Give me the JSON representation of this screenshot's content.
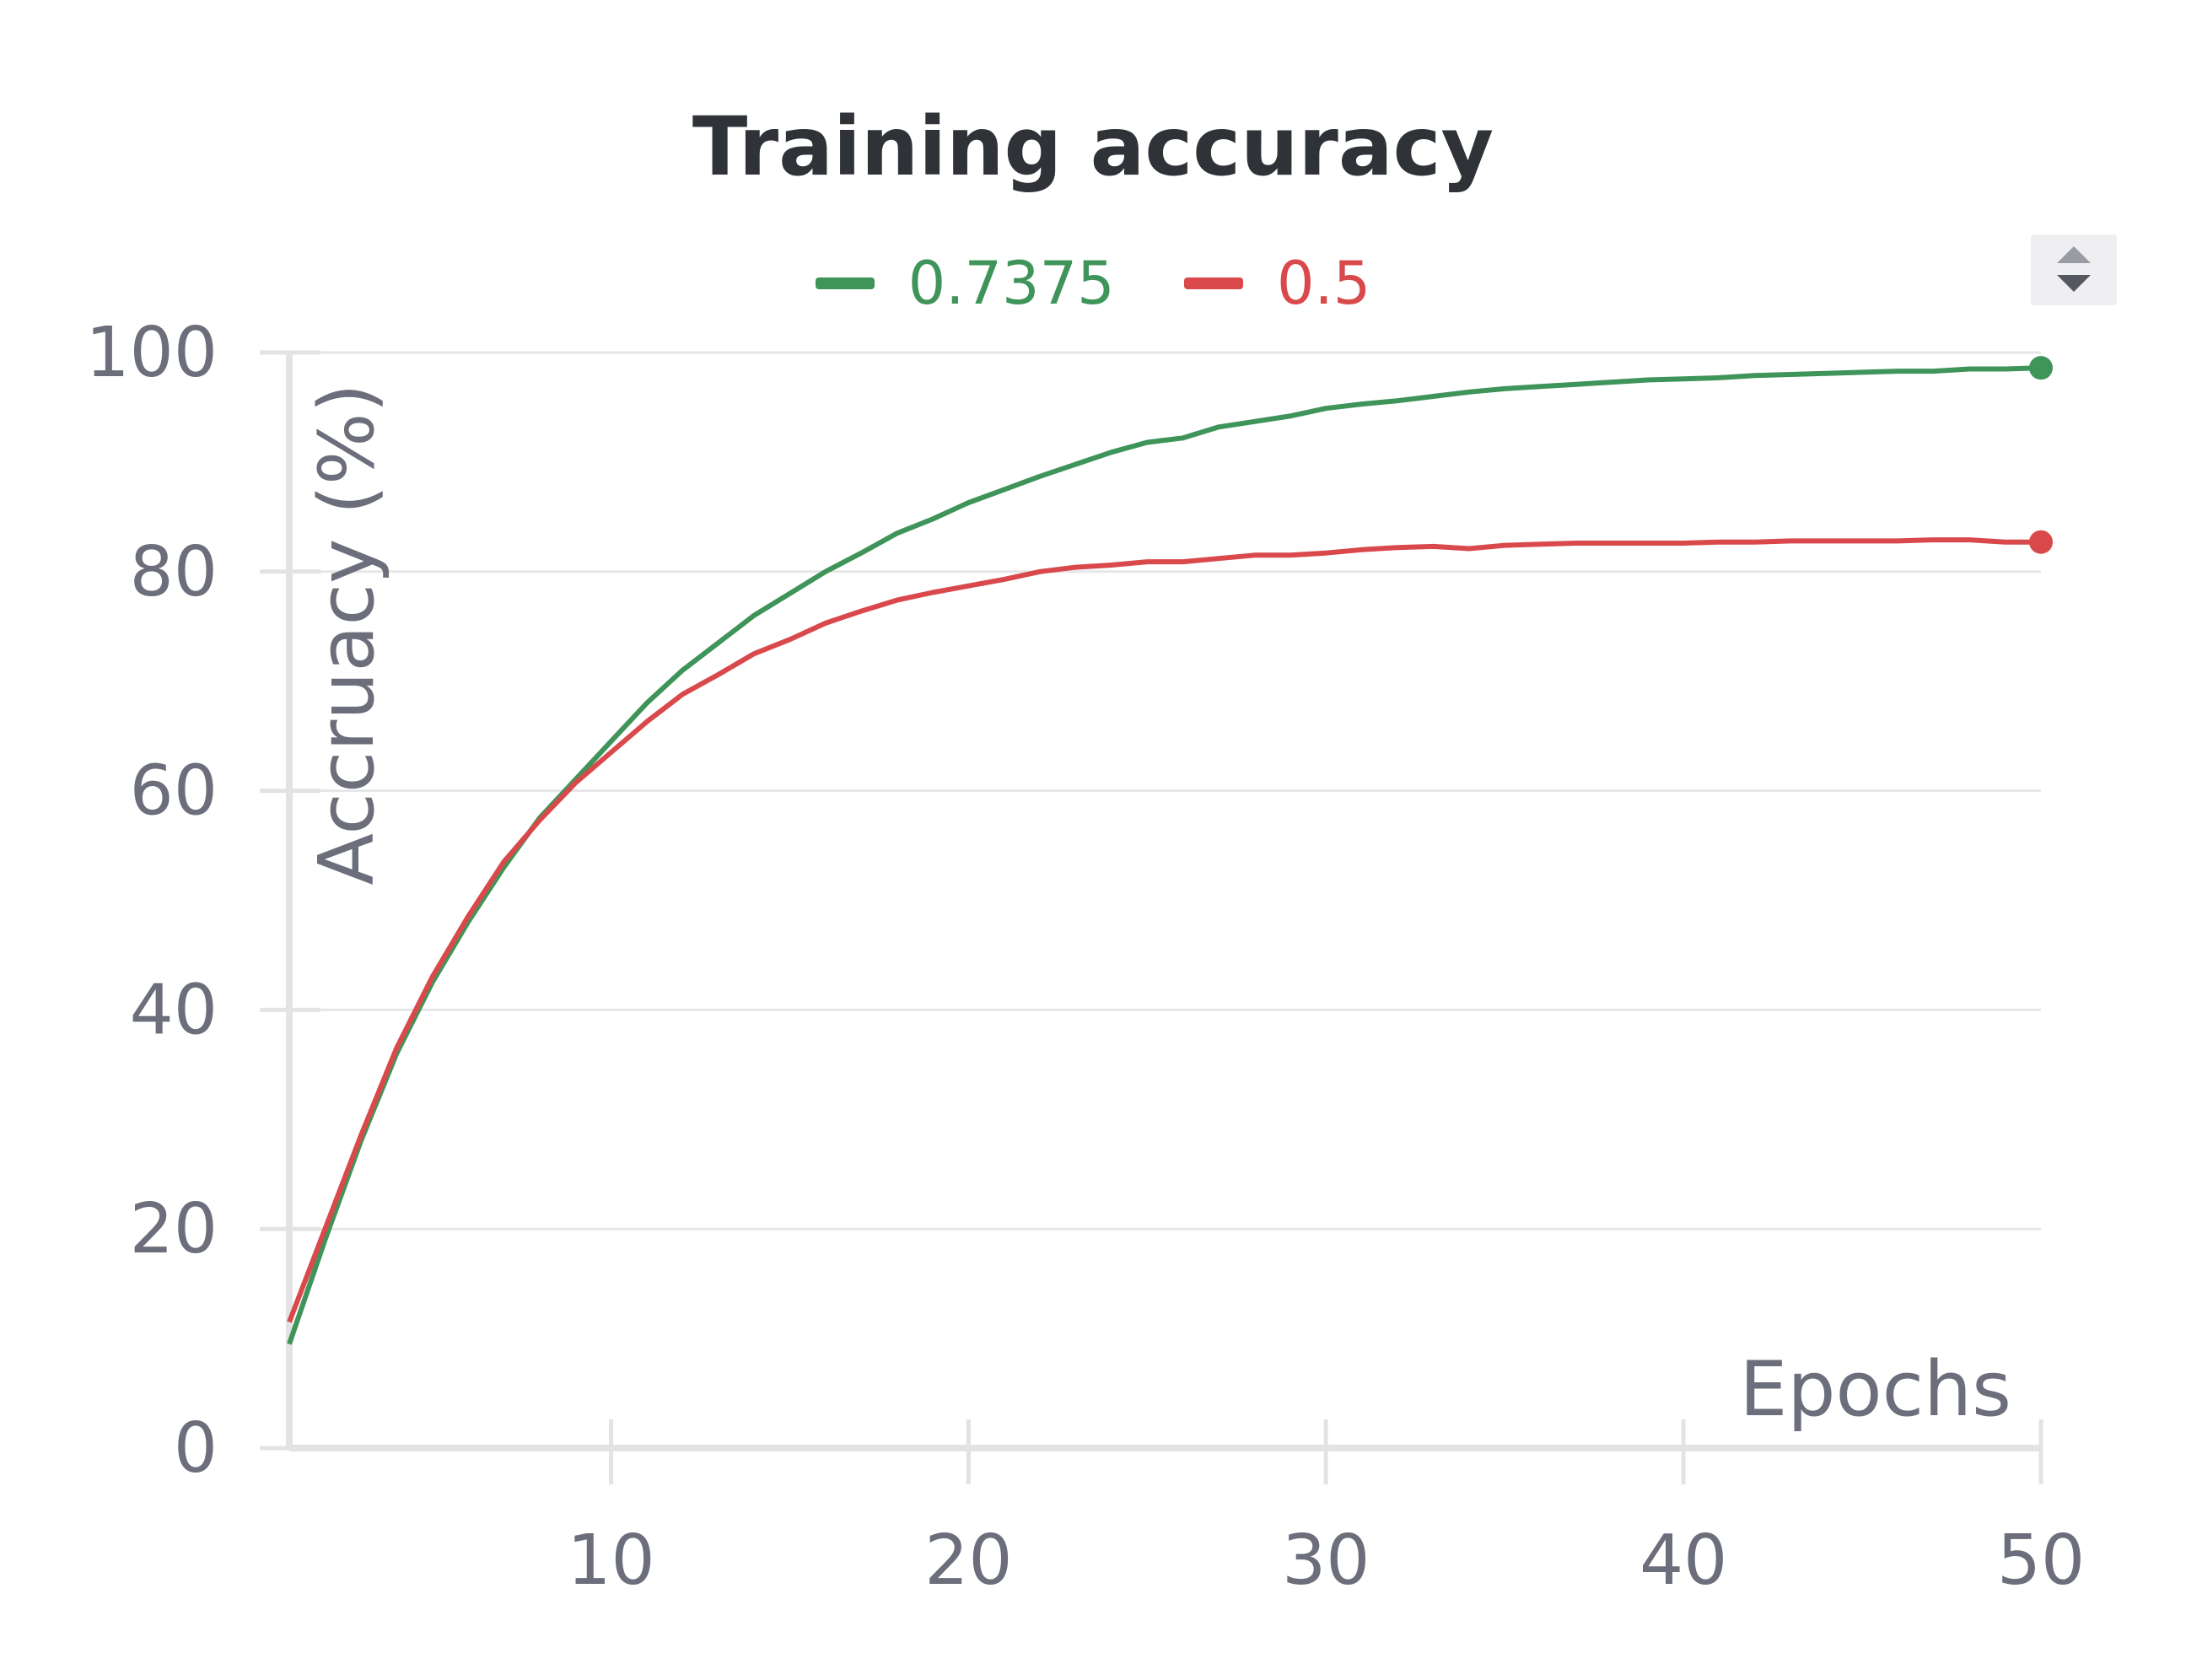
{
  "chart_data": {
    "type": "line",
    "title": "Training accuracy",
    "xlabel": "Epochs",
    "ylabel": "Accruacy (%)",
    "xlim": [
      1,
      50
    ],
    "ylim": [
      0,
      100
    ],
    "xticks": [
      10,
      20,
      30,
      40,
      50
    ],
    "yticks": [
      0,
      20,
      40,
      60,
      80,
      100
    ],
    "grid": "horizontal",
    "legend_position": "top-center",
    "x": [
      1,
      2,
      3,
      4,
      5,
      6,
      7,
      8,
      9,
      10,
      11,
      12,
      13,
      14,
      15,
      16,
      17,
      18,
      19,
      20,
      21,
      22,
      23,
      24,
      25,
      26,
      27,
      28,
      29,
      30,
      31,
      32,
      33,
      34,
      35,
      36,
      37,
      38,
      39,
      40,
      41,
      42,
      43,
      44,
      45,
      46,
      47,
      48,
      49,
      50
    ],
    "series": [
      {
        "name": "0.7375",
        "color": "#3f9459",
        "values": [
          9.5,
          19,
          28,
          36,
          42.5,
          48,
          53,
          57.5,
          61,
          64.5,
          68,
          71,
          73.5,
          76,
          78,
          80,
          81.7,
          83.5,
          84.8,
          86.3,
          87.5,
          88.7,
          89.8,
          90.9,
          91.8,
          92.2,
          93.2,
          93.7,
          94.2,
          94.9,
          95.3,
          95.6,
          96,
          96.4,
          96.7,
          96.9,
          97.1,
          97.3,
          97.5,
          97.6,
          97.7,
          97.9,
          98,
          98.1,
          98.2,
          98.3,
          98.3,
          98.5,
          98.5,
          98.6
        ]
      },
      {
        "name": "0.5",
        "color": "#d9494b",
        "values": [
          11.5,
          20,
          28.5,
          36.5,
          43,
          48.5,
          53.5,
          57.3,
          60.7,
          63.5,
          66.3,
          68.8,
          70.6,
          72.5,
          73.8,
          75.3,
          76.4,
          77.4,
          78.1,
          78.7,
          79.3,
          80,
          80.4,
          80.6,
          80.9,
          80.9,
          81.2,
          81.5,
          81.5,
          81.7,
          82,
          82.2,
          82.3,
          82.1,
          82.4,
          82.5,
          82.6,
          82.6,
          82.6,
          82.6,
          82.7,
          82.7,
          82.8,
          82.8,
          82.8,
          82.8,
          82.9,
          82.9,
          82.7,
          82.7
        ]
      }
    ]
  },
  "ui": {
    "spinner_up_icon": "triangle-up-icon",
    "spinner_down_icon": "triangle-down-icon",
    "spinner_bg": "#efeff1"
  }
}
